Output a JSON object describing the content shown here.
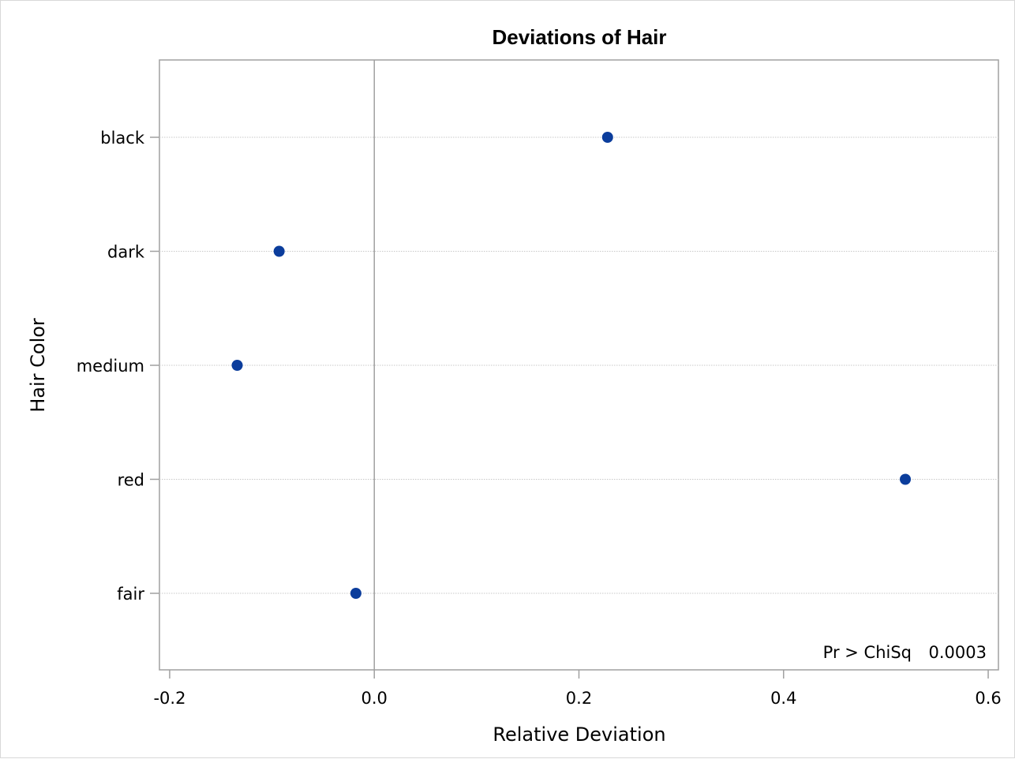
{
  "chart_data": {
    "type": "scatter",
    "title": "Deviations of Hair",
    "xlabel": "Relative Deviation",
    "ylabel": "Hair Color",
    "xlim": [
      -0.21,
      0.61
    ],
    "xticks": [
      -0.2,
      0.0,
      0.2,
      0.4,
      0.6
    ],
    "xtick_labels": [
      "-0.2",
      "0.0",
      "0.2",
      "0.4",
      "0.6"
    ],
    "categories": [
      "black",
      "dark",
      "medium",
      "red",
      "fair"
    ],
    "values": [
      0.228,
      -0.093,
      -0.134,
      0.519,
      -0.018
    ],
    "reference_line_x": 0.0,
    "grid": "horizontal dotted at categories",
    "marker_color": "#0b3d9c",
    "inset": {
      "label": "Pr > ChiSq",
      "value": "0.0003",
      "placement": "bottom-right"
    }
  }
}
